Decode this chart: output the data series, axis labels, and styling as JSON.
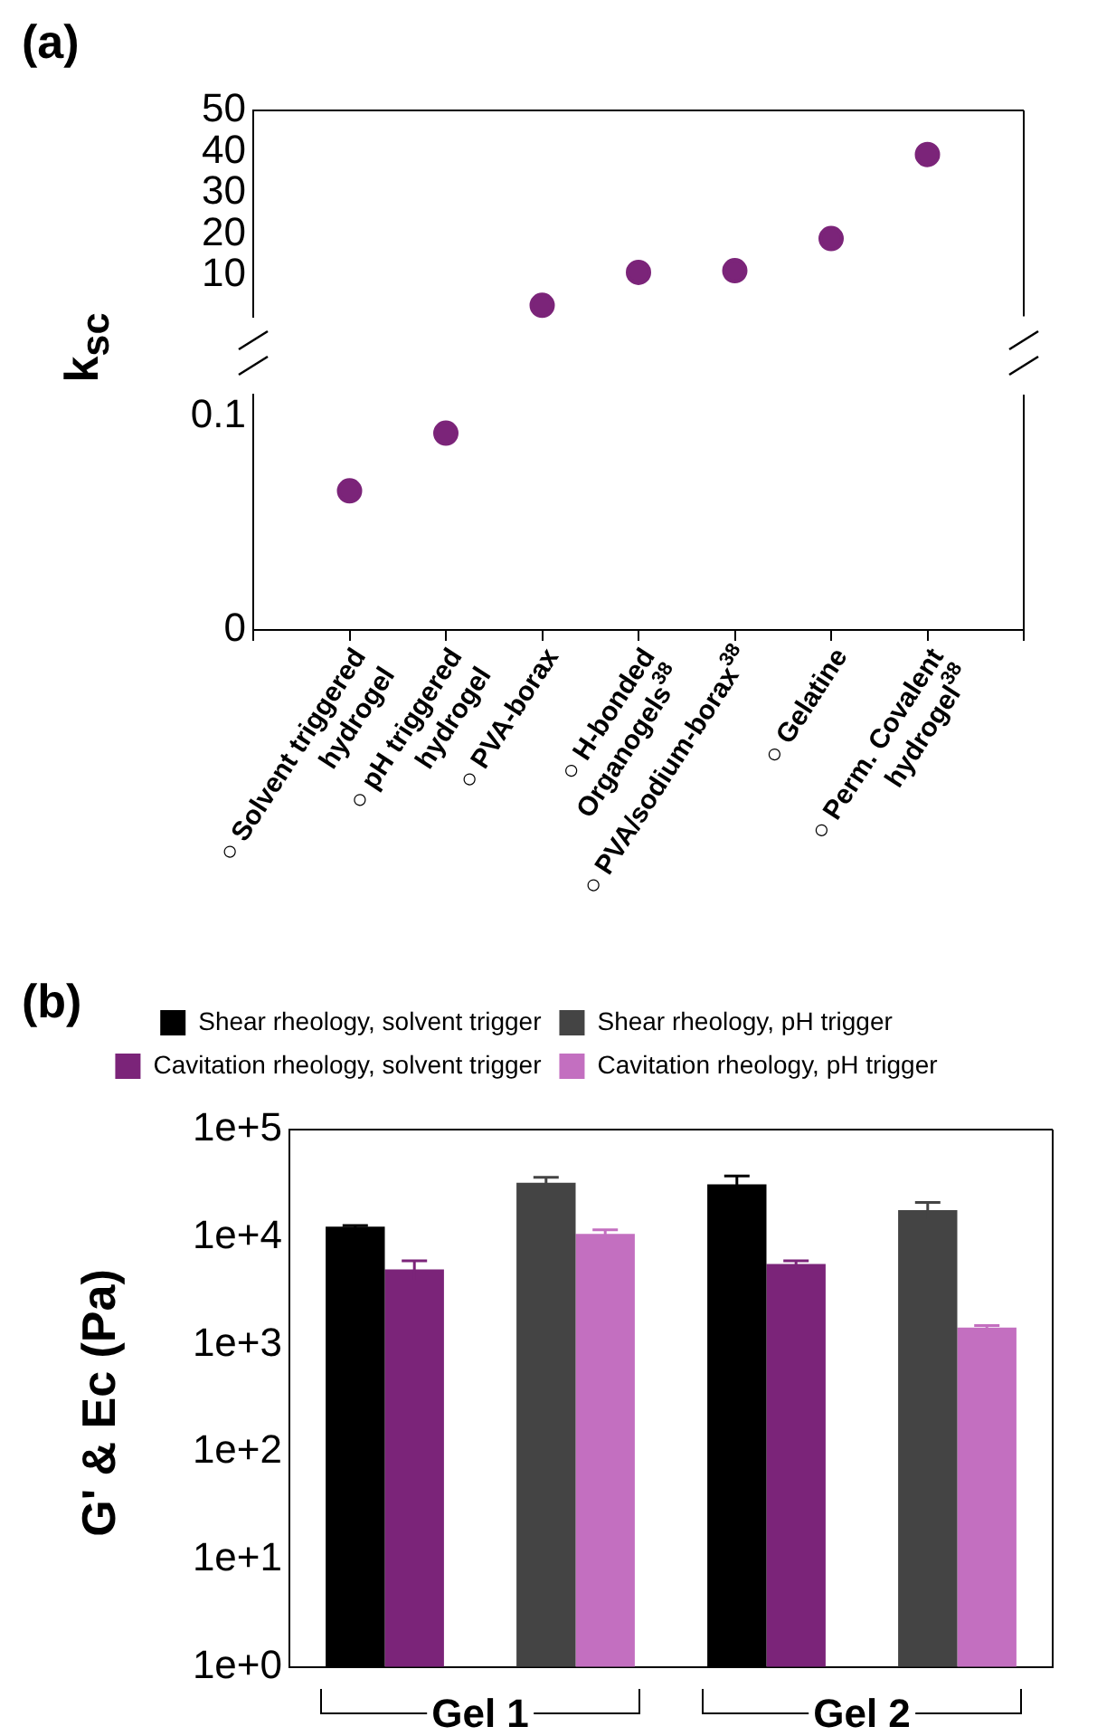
{
  "chart_data": [
    {
      "type": "scatter",
      "title": "(a)",
      "values": [
        null,
        null,
        2.7,
        10.7,
        11.1,
        18.9,
        39.3
      ],
      "color": "#7b2479",
      "ylim": [
        0,
        50
      ],
      "yticks": [
        10,
        20,
        30,
        40,
        50
      ],
      "tick_labels": "y",
      "marker": "circle"
    },
    {
      "type": "scatter",
      "ylabel": "k$_{sc}$",
      "categories": [
        "○ Solvent triggered\nhydrogel",
        "○ pH triggered\nhydrogel",
        "○ PVA-borax",
        "○ H-bonded\nOrganogels$^{38}$",
        "○ PVA/sodium-borax$^{38}$",
        "○ Gelatine",
        "○ Perm. Covalent\nhydrogel$^{38}$"
      ],
      "values": [
        0.065,
        0.092,
        null,
        null,
        null,
        null,
        null
      ],
      "color": "#7b2479",
      "ylim": [
        0,
        0.11
      ],
      "yticks": [
        0,
        0.1
      ],
      "marker": "circle"
    },
    {
      "type": "bar",
      "title": "(b)",
      "ylabel": "G' & Ec (Pa)",
      "categories": [
        null,
        null,
        null,
        null
      ],
      "log": "y",
      "ylim": [
        1,
        100000
      ],
      "yticks": [
        {
          "value": 1,
          "label": "1e+0"
        },
        {
          "value": 10,
          "label": "1e+1"
        },
        {
          "value": 100,
          "label": "1e+2"
        },
        {
          "value": 1000,
          "label": "1e+3"
        },
        {
          "value": 10000,
          "label": "1e+4"
        },
        {
          "value": 100000,
          "label": "1e+5"
        }
      ],
      "legend": "top",
      "annotations": [
        "Gel 1",
        "Gel 2"
      ],
      "series": [
        {
          "name": "Shear rheology, solvent trigger",
          "color": "#000000",
          "values": [
            12500,
            null,
            31000,
            null
          ],
          "errors": [
            300,
            null,
            6000,
            null
          ]
        },
        {
          "name": "Cavitation rheology, solvent trigger",
          "color": "#7b2479",
          "values": [
            5000,
            null,
            5600,
            null
          ],
          "errors": [
            1000,
            null,
            400,
            null
          ]
        },
        {
          "name": "Shear rheology, pH trigger",
          "color": "#444444",
          "values": [
            null,
            32000,
            null,
            17800
          ],
          "errors": [
            null,
            4000,
            null,
            3200
          ]
        },
        {
          "name": "Cavitation rheology, pH trigger",
          "color": "#c36fc0",
          "values": [
            null,
            10700,
            null,
            1440
          ],
          "errors": [
            null,
            1000,
            null,
            60
          ]
        }
      ]
    }
  ]
}
